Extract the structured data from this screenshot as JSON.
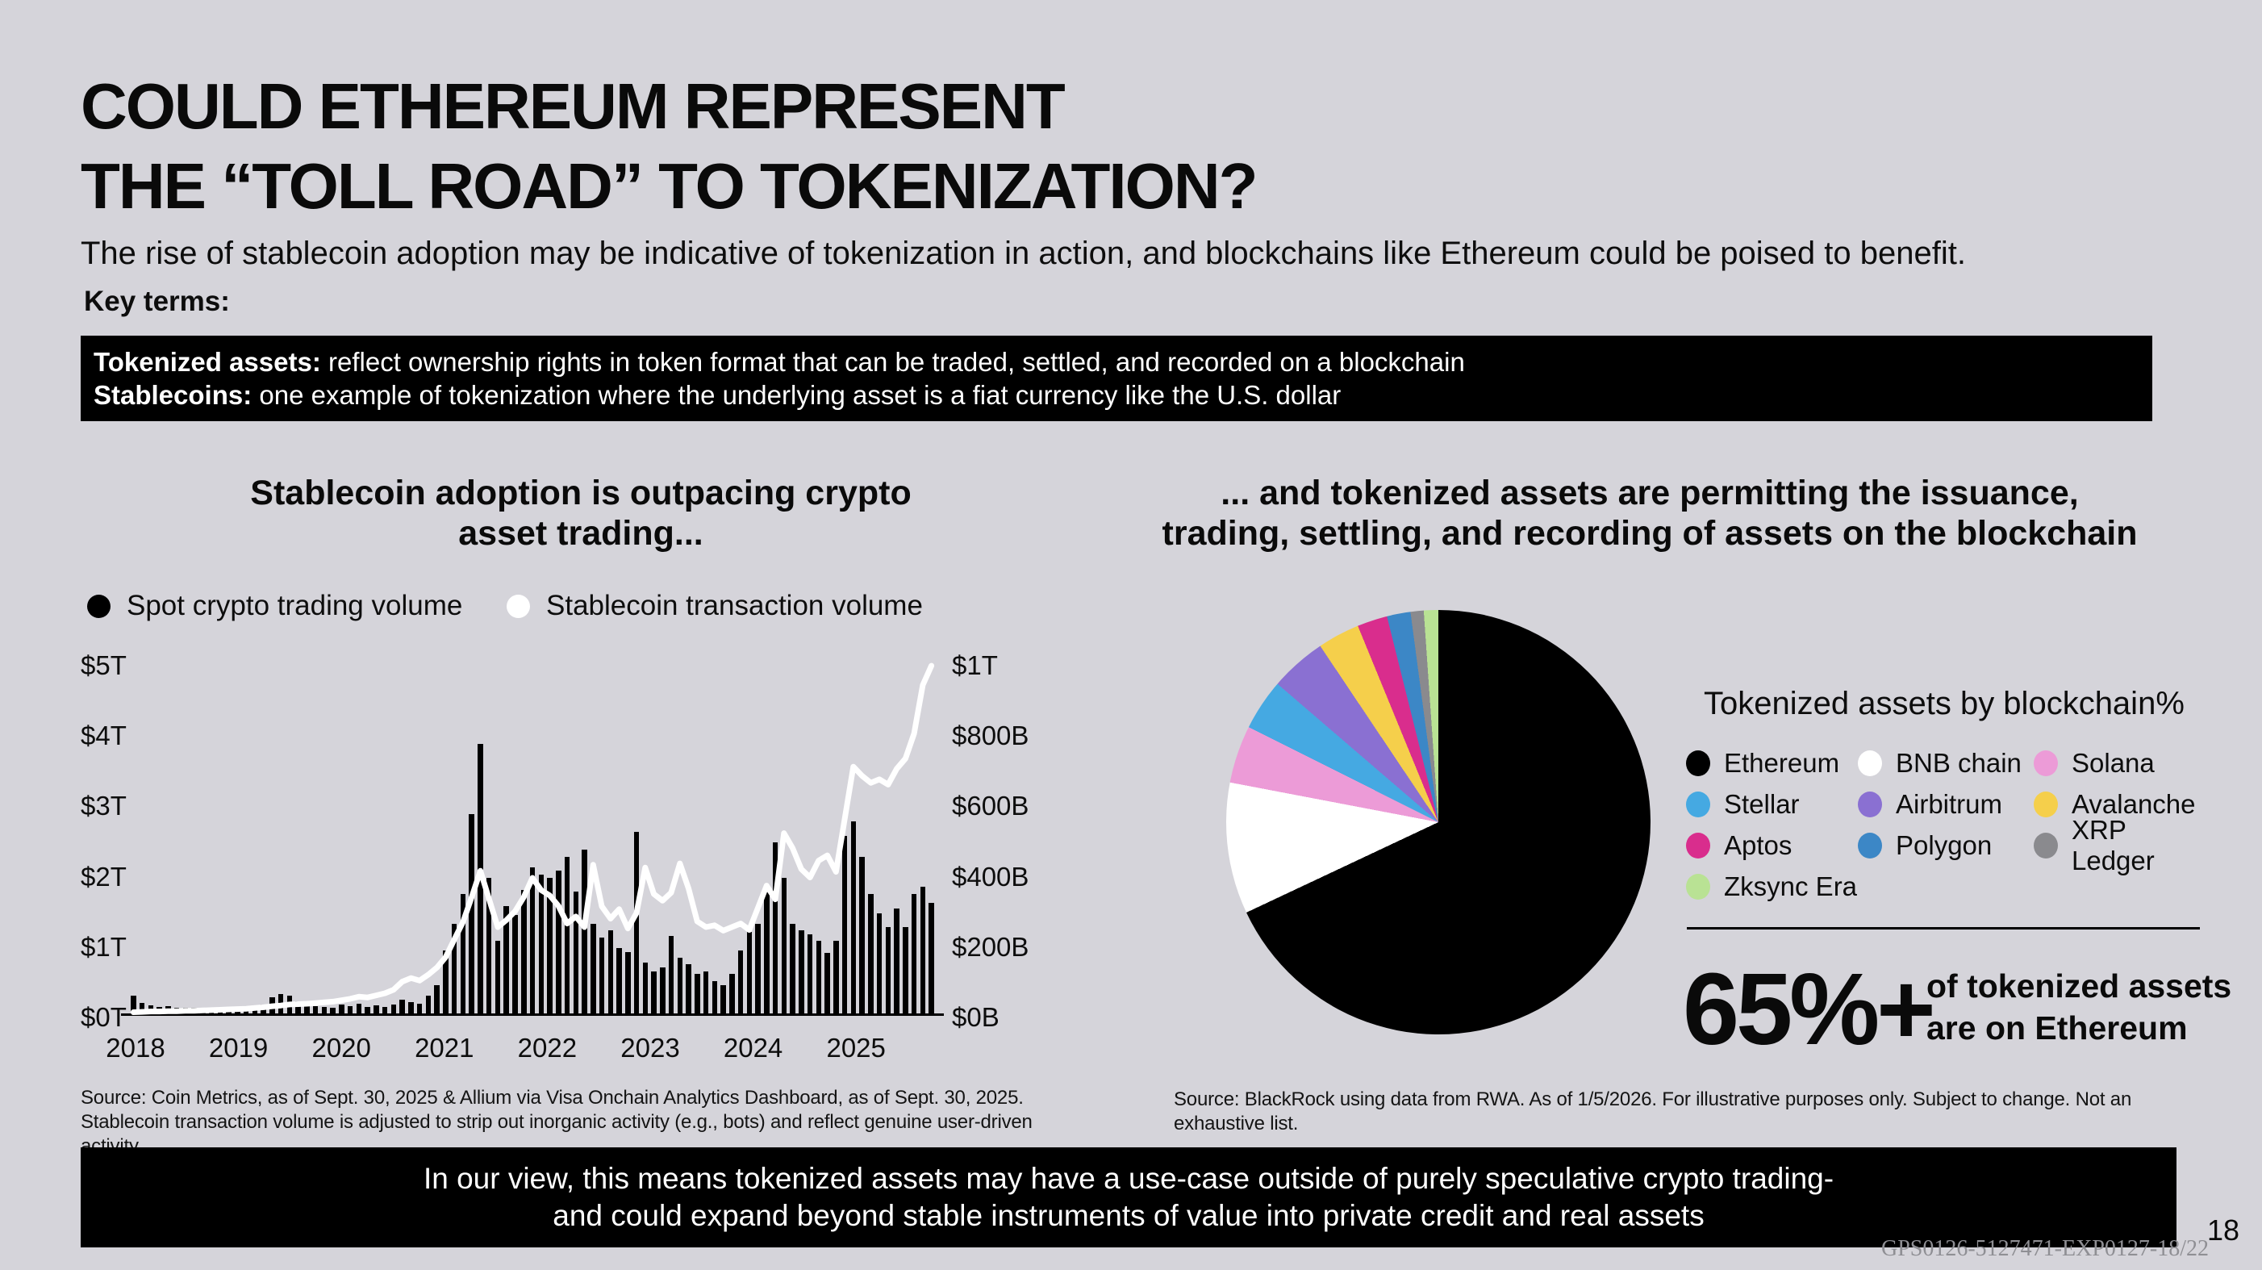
{
  "colors": {
    "background": "#d5d4da",
    "box_black": "#000000",
    "white": "#ffffff"
  },
  "slide": {
    "title_line1": "COULD ETHEREUM REPRESENT",
    "title_line2": "THE “TOLL ROAD” TO TOKENIZATION?",
    "subtitle": "The rise of stablecoin adoption may be indicative of tokenization in action, and blockchains like Ethereum could be poised to benefit.",
    "key_terms_label": "Key terms:",
    "key_terms": [
      {
        "term": "Tokenized assets:",
        "definition": " reflect ownership rights in token format that can be traded, settled, and recorded on a blockchain"
      },
      {
        "term": "Stablecoins:",
        "definition": " one example of tokenization where the underlying asset is a fiat currency like the U.S. dollar"
      }
    ],
    "takeaway_line1": "In our view, this means tokenized assets may have a use-case outside of purely speculative crypto trading-",
    "takeaway_line2": "and could expand beyond stable instruments of value into private credit and real assets",
    "footer_code": "GPS0126-5127471-EXP0127-18/22",
    "page_number": "18"
  },
  "left_chart": {
    "title_line1": "Stablecoin adoption is outpacing crypto",
    "title_line2": "asset trading...",
    "legend": [
      {
        "label": "Spot crypto trading volume",
        "color": "#000000"
      },
      {
        "label": "Stablecoin transaction volume",
        "color": "#ffffff"
      }
    ],
    "source": "Source: Coin Metrics, as of Sept. 30, 2025 & Allium via Visa Onchain Analytics Dashboard, as of Sept. 30, 2025. Stablecoin transaction volume is adjusted to strip out inorganic activity (e.g., bots) and reflect genuine user-driven activity."
  },
  "right_chart": {
    "title_line1": "... and  tokenized assets are permitting the issuance,",
    "title_line2": "trading, settling, and recording of assets on the blockchain",
    "legend_title": "Tokenized assets by blockchain%",
    "legend_rows": [
      {
        "label": "Ethereum",
        "color": "#000000"
      },
      {
        "label": "BNB chain",
        "color": "#ffffff"
      },
      {
        "label": "Solana",
        "color": "#ec9bd7"
      },
      {
        "label": "Stellar",
        "color": "#45a9e2"
      },
      {
        "label": "Airbitrum",
        "color": "#8a70d2"
      },
      {
        "label": "Avalanche",
        "color": "#f5cf4b"
      },
      {
        "label": "Aptos",
        "color": "#d92d8d"
      },
      {
        "label": "Polygon",
        "color": "#3c87c6"
      },
      {
        "label": "XRP Ledger",
        "color": "#8a8a8e"
      },
      {
        "label": "Zksync Era",
        "color": "#b9e294"
      }
    ],
    "stat_value": "65%+",
    "stat_desc_line1": "of tokenized assets",
    "stat_desc_line2": "are on Ethereum",
    "source": "Source: BlackRock using data from RWA. As of 1/5/2026. For illustrative purposes only. Subject to change. Not an exhaustive list."
  },
  "chart_data": [
    {
      "type": "bar",
      "title": "Stablecoin adoption is outpacing crypto asset trading...",
      "x_start": "2018-01",
      "x_end": "2025-09",
      "x_year_labels": [
        "2018",
        "2019",
        "2020",
        "2021",
        "2022",
        "2023",
        "2024",
        "2025"
      ],
      "left_axis": {
        "title": "Spot crypto trading volume ($T)",
        "range": [
          0,
          5
        ],
        "ticks_top_down": [
          "$5T",
          "$4T",
          "$3T",
          "$2T",
          "$1T",
          "$0T"
        ]
      },
      "right_axis": {
        "title": "Stablecoin transaction volume ($B)",
        "range": [
          0,
          1000
        ],
        "ticks_top_down": [
          "$1T",
          "$800B",
          "$600B",
          "$400B",
          "$200B",
          "$0B"
        ]
      },
      "grid": false,
      "legend_position": "top-left",
      "series": [
        {
          "name": "Spot crypto trading volume",
          "render": "bar",
          "axis": "left",
          "unit": "$T",
          "color": "#000000",
          "monthly_values": [
            0.28,
            0.17,
            0.14,
            0.12,
            0.13,
            0.1,
            0.1,
            0.1,
            0.08,
            0.08,
            0.1,
            0.1,
            0.06,
            0.07,
            0.1,
            0.15,
            0.25,
            0.3,
            0.28,
            0.2,
            0.15,
            0.13,
            0.12,
            0.1,
            0.15,
            0.13,
            0.16,
            0.12,
            0.14,
            0.12,
            0.15,
            0.22,
            0.18,
            0.16,
            0.28,
            0.42,
            0.92,
            1.3,
            1.72,
            2.86,
            3.85,
            1.95,
            1.05,
            1.55,
            1.42,
            1.78,
            2.1,
            2.0,
            1.95,
            2.05,
            2.25,
            1.75,
            2.35,
            1.3,
            1.1,
            1.2,
            0.95,
            0.9,
            2.6,
            0.75,
            0.62,
            0.68,
            1.12,
            0.82,
            0.72,
            0.58,
            0.62,
            0.48,
            0.42,
            0.58,
            0.92,
            1.18,
            1.3,
            1.75,
            2.45,
            1.95,
            1.3,
            1.2,
            1.15,
            1.05,
            0.88,
            1.05,
            2.55,
            2.75,
            2.25,
            1.72,
            1.45,
            1.25,
            1.52,
            1.25,
            1.72,
            1.82,
            1.6
          ]
        },
        {
          "name": "Stablecoin transaction volume",
          "render": "line",
          "axis": "right",
          "unit": "$B",
          "color": "#ffffff",
          "monthly_values": [
            8,
            9,
            10,
            10,
            11,
            11,
            12,
            12,
            13,
            14,
            15,
            16,
            17,
            18,
            20,
            22,
            25,
            27,
            30,
            31,
            32,
            34,
            36,
            38,
            42,
            46,
            52,
            50,
            56,
            62,
            72,
            95,
            105,
            98,
            115,
            135,
            165,
            215,
            265,
            335,
            410,
            330,
            250,
            270,
            295,
            335,
            390,
            355,
            340,
            310,
            260,
            280,
            250,
            427,
            309,
            274,
            301,
            246,
            290,
            419,
            344,
            325,
            348,
            431,
            360,
            266,
            250,
            255,
            240,
            250,
            260,
            242,
            305,
            368,
            329,
            517,
            474,
            415,
            391,
            439,
            454,
            407,
            557,
            706,
            680,
            660,
            670,
            655,
            700,
            729,
            800,
            938,
            993
          ]
        }
      ]
    },
    {
      "type": "pie",
      "title": "Tokenized assets by blockchain%",
      "clockwise_from_top": true,
      "slices": [
        {
          "label": "Ethereum",
          "value": 68.0,
          "color": "#000000"
        },
        {
          "label": "BNB chain",
          "value": 10.0,
          "color": "#ffffff"
        },
        {
          "label": "Solana",
          "value": 4.4,
          "color": "#ec9bd7"
        },
        {
          "label": "Stellar",
          "value": 3.9,
          "color": "#45a9e2"
        },
        {
          "label": "Airbitrum",
          "value": 4.3,
          "color": "#8a70d2"
        },
        {
          "label": "Avalanche",
          "value": 3.2,
          "color": "#f5cf4b"
        },
        {
          "label": "Aptos",
          "value": 2.3,
          "color": "#d92d8d"
        },
        {
          "label": "Polygon",
          "value": 1.8,
          "color": "#3c87c6"
        },
        {
          "label": "XRP Ledger",
          "value": 1.0,
          "color": "#8a8a8e"
        },
        {
          "label": "Zksync Era",
          "value": 1.1,
          "color": "#b9e294"
        }
      ],
      "annotation": {
        "value": "65%+",
        "text": "of tokenized assets are on Ethereum"
      }
    }
  ]
}
